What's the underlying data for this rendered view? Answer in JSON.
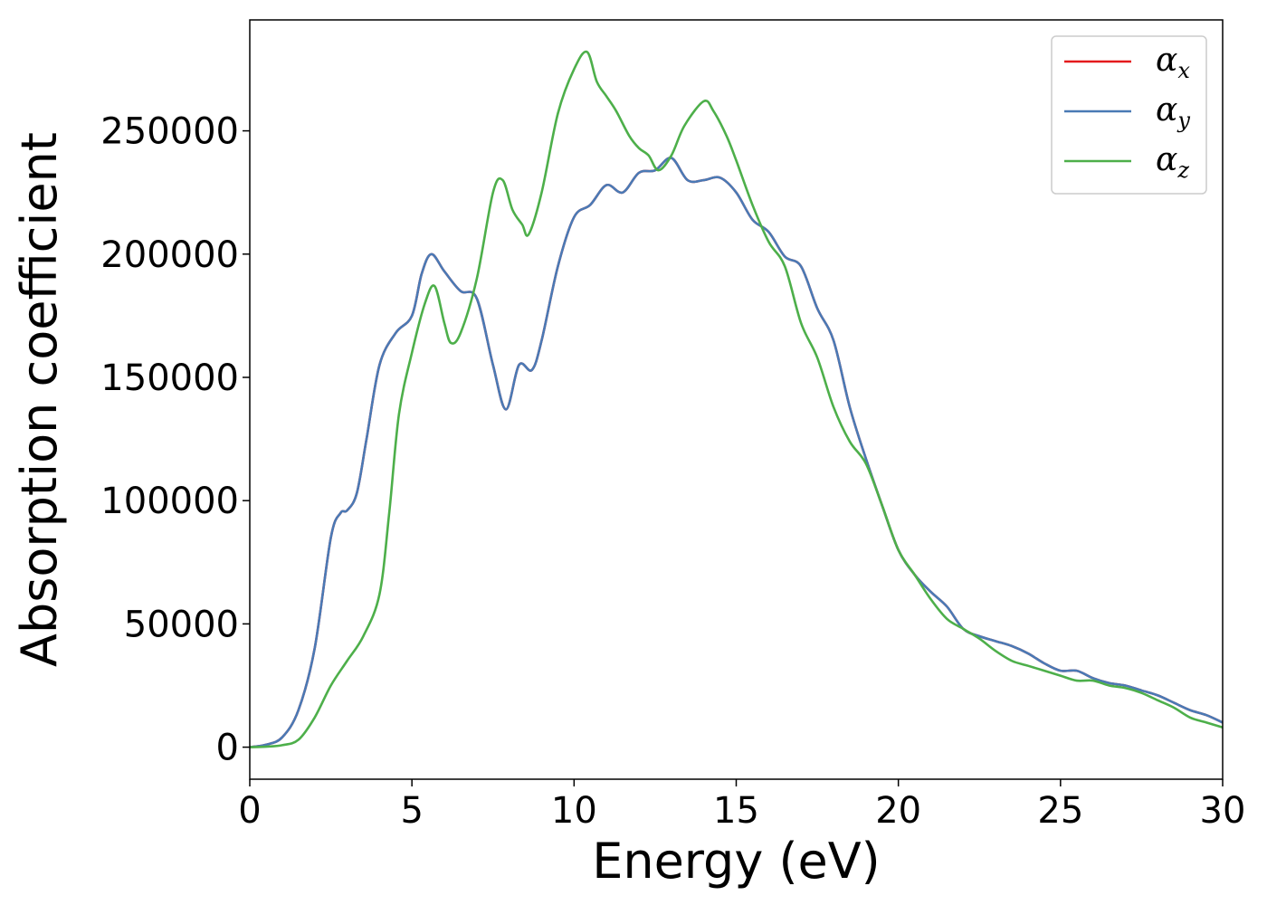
{
  "chart_data": {
    "type": "line",
    "xlabel": "Energy (eV)",
    "ylabel": "Absorption coefficient",
    "xlim": [
      0,
      30
    ],
    "ylim": [
      -13000,
      295000
    ],
    "x_ticks": [
      0,
      5,
      10,
      15,
      20,
      25,
      30
    ],
    "y_ticks": [
      0,
      50000,
      100000,
      150000,
      200000,
      250000
    ],
    "grid": false,
    "legend_position": "top-right",
    "series": [
      {
        "name": "α_x",
        "legend_symbol": "α",
        "legend_subscript": "x",
        "color": "#e41a1c",
        "x": [
          0,
          0.5,
          1.0,
          1.5,
          2.0,
          2.5,
          2.8,
          3.0,
          3.3,
          3.6,
          4.0,
          4.5,
          5.0,
          5.3,
          5.6,
          6.0,
          6.5,
          7.0,
          7.5,
          7.9,
          8.3,
          8.7,
          9.0,
          9.5,
          10.0,
          10.5,
          11.0,
          11.5,
          12.0,
          12.5,
          13.0,
          13.5,
          14.0,
          14.5,
          15.0,
          15.5,
          16.0,
          16.5,
          17.0,
          17.5,
          18.0,
          18.5,
          19.0,
          19.5,
          20.0,
          20.5,
          21.0,
          21.5,
          22.0,
          22.5,
          23.0,
          23.5,
          24.0,
          24.5,
          25.0,
          25.5,
          26.0,
          26.5,
          27.0,
          27.5,
          28.0,
          28.5,
          29.0,
          29.5,
          30.0
        ],
        "y": [
          0,
          1000,
          4000,
          15000,
          40000,
          85000,
          95000,
          96000,
          103000,
          125000,
          155000,
          168000,
          175000,
          192000,
          200000,
          193000,
          185000,
          182000,
          155000,
          137000,
          155000,
          153000,
          165000,
          195000,
          215000,
          220000,
          228000,
          225000,
          233000,
          234000,
          239000,
          230000,
          230000,
          231000,
          225000,
          214000,
          209000,
          199000,
          195000,
          178000,
          165000,
          138000,
          117000,
          98000,
          80000,
          70000,
          63000,
          57000,
          48000,
          45000,
          43000,
          41000,
          38000,
          34000,
          31000,
          31000,
          28000,
          26000,
          25000,
          23000,
          21000,
          18000,
          15000,
          13000,
          10000
        ]
      },
      {
        "name": "α_y",
        "legend_symbol": "α",
        "legend_subscript": "y",
        "color": "#4a7ab5",
        "x": [
          0,
          0.5,
          1.0,
          1.5,
          2.0,
          2.5,
          2.8,
          3.0,
          3.3,
          3.6,
          4.0,
          4.5,
          5.0,
          5.3,
          5.6,
          6.0,
          6.5,
          7.0,
          7.5,
          7.9,
          8.3,
          8.7,
          9.0,
          9.5,
          10.0,
          10.5,
          11.0,
          11.5,
          12.0,
          12.5,
          13.0,
          13.5,
          14.0,
          14.5,
          15.0,
          15.5,
          16.0,
          16.5,
          17.0,
          17.5,
          18.0,
          18.5,
          19.0,
          19.5,
          20.0,
          20.5,
          21.0,
          21.5,
          22.0,
          22.5,
          23.0,
          23.5,
          24.0,
          24.5,
          25.0,
          25.5,
          26.0,
          26.5,
          27.0,
          27.5,
          28.0,
          28.5,
          29.0,
          29.5,
          30.0
        ],
        "y": [
          0,
          1000,
          4000,
          15000,
          40000,
          85000,
          95000,
          96000,
          103000,
          125000,
          155000,
          168000,
          175000,
          192000,
          200000,
          193000,
          185000,
          182000,
          155000,
          137000,
          155000,
          153000,
          165000,
          195000,
          215000,
          220000,
          228000,
          225000,
          233000,
          234000,
          239000,
          230000,
          230000,
          231000,
          225000,
          214000,
          209000,
          199000,
          195000,
          178000,
          165000,
          138000,
          117000,
          98000,
          80000,
          70000,
          63000,
          57000,
          48000,
          45000,
          43000,
          41000,
          38000,
          34000,
          31000,
          31000,
          28000,
          26000,
          25000,
          23000,
          21000,
          18000,
          15000,
          13000,
          10000
        ]
      },
      {
        "name": "α_z",
        "legend_symbol": "α",
        "legend_subscript": "z",
        "color": "#4daf4a",
        "x": [
          0,
          0.5,
          1.0,
          1.5,
          2.0,
          2.5,
          3.0,
          3.5,
          4.0,
          4.3,
          4.6,
          5.0,
          5.4,
          5.7,
          6.0,
          6.2,
          6.5,
          7.0,
          7.5,
          7.8,
          8.1,
          8.4,
          8.6,
          9.0,
          9.5,
          10.0,
          10.4,
          10.7,
          11.0,
          11.3,
          11.7,
          12.0,
          12.3,
          12.6,
          13.0,
          13.4,
          14.0,
          14.3,
          14.7,
          15.0,
          15.5,
          16.0,
          16.5,
          17.0,
          17.5,
          18.0,
          18.5,
          19.0,
          19.5,
          20.0,
          20.5,
          21.0,
          21.5,
          22.0,
          22.5,
          23.0,
          23.5,
          24.0,
          24.5,
          25.0,
          25.5,
          26.0,
          26.5,
          27.0,
          27.5,
          28.0,
          28.5,
          29.0,
          29.5,
          30.0
        ],
        "y": [
          0,
          200,
          800,
          3000,
          12000,
          25000,
          35000,
          45000,
          62000,
          95000,
          135000,
          160000,
          180000,
          187000,
          172000,
          164000,
          168000,
          190000,
          225000,
          230000,
          218000,
          212000,
          208000,
          225000,
          257000,
          275000,
          282000,
          270000,
          264000,
          258000,
          248000,
          243000,
          240000,
          234000,
          240000,
          252000,
          262000,
          258000,
          248000,
          238000,
          220000,
          205000,
          195000,
          172000,
          158000,
          138000,
          124000,
          115000,
          98000,
          80000,
          70000,
          60000,
          52000,
          48000,
          44000,
          39000,
          35000,
          33000,
          31000,
          29000,
          27000,
          27000,
          25000,
          24000,
          22000,
          19000,
          16000,
          12000,
          10000,
          8000
        ]
      }
    ]
  }
}
